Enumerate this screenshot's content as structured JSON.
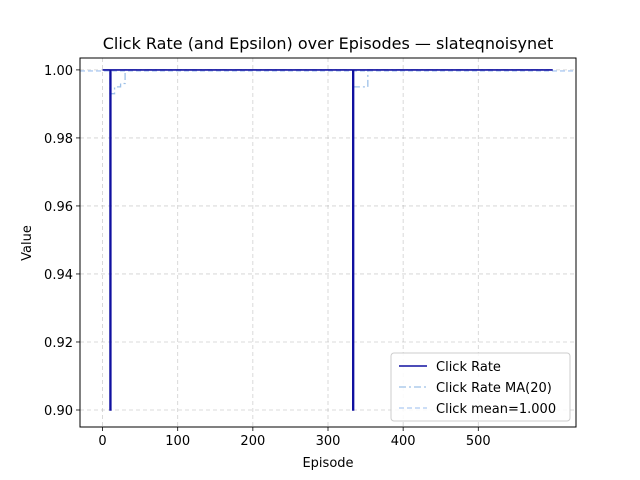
{
  "chart_data": {
    "type": "line",
    "title": "Click Rate (and Epsilon) over Episodes — slateqnoisynet",
    "xlabel": "Episode",
    "ylabel": "Value",
    "xlim": [
      -30,
      630
    ],
    "ylim": [
      0.895,
      1.0035
    ],
    "xticks": [
      0,
      100,
      200,
      300,
      400,
      500
    ],
    "yticks": [
      0.9,
      0.92,
      0.94,
      0.96,
      0.98,
      1.0
    ],
    "ytick_labels": [
      "0.90",
      "0.92",
      "0.94",
      "0.96",
      "0.98",
      "1.00"
    ],
    "grid": true,
    "legend_position": "lower-right",
    "series": [
      {
        "name": "Click Rate",
        "color": "#1010a0",
        "style": "solid",
        "points": [
          [
            0,
            1.0
          ],
          [
            10,
            1.0
          ],
          [
            10,
            0.9
          ],
          [
            11,
            0.9
          ],
          [
            11,
            1.0
          ],
          [
            333,
            1.0
          ],
          [
            333,
            0.9
          ],
          [
            334,
            0.9
          ],
          [
            334,
            1.0
          ],
          [
            599,
            1.0
          ]
        ]
      },
      {
        "name": "Click Rate MA(20)",
        "color": "#9ec1e8",
        "style": "dashdot",
        "points": [
          [
            0,
            1.0
          ],
          [
            10,
            1.0
          ],
          [
            10,
            0.993
          ],
          [
            16,
            0.993
          ],
          [
            16,
            0.995
          ],
          [
            24,
            0.995
          ],
          [
            24,
            0.996
          ],
          [
            30,
            0.996
          ],
          [
            30,
            1.0
          ],
          [
            333,
            1.0
          ],
          [
            333,
            0.995
          ],
          [
            353,
            0.995
          ],
          [
            353,
            1.0
          ],
          [
            599,
            1.0
          ]
        ]
      },
      {
        "name": "Click mean=1.000",
        "color": "#aecbf2",
        "style": "dashed",
        "points": [
          [
            -30,
            0.9997
          ],
          [
            630,
            0.9997
          ]
        ]
      }
    ]
  }
}
